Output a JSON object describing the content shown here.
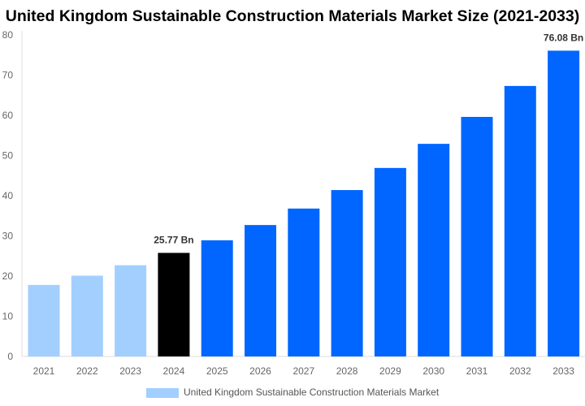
{
  "chart_data": {
    "type": "bar",
    "title": "United Kingdom Sustainable Construction Materials Market Size (2021-2033)",
    "categories": [
      "2021",
      "2022",
      "2023",
      "2024",
      "2025",
      "2026",
      "2027",
      "2028",
      "2029",
      "2030",
      "2031",
      "2032",
      "2033"
    ],
    "series": [
      {
        "name": "United Kingdom Sustainable Construction Materials Market",
        "values": [
          17.8,
          20.1,
          22.7,
          25.77,
          28.9,
          32.7,
          36.8,
          41.4,
          46.9,
          52.9,
          59.6,
          67.3,
          76.08
        ]
      }
    ],
    "data_labels": [
      {
        "index": 3,
        "text": "25.77 Bn"
      },
      {
        "index": 12,
        "text": "76.08 Bn"
      }
    ],
    "ylim": [
      0,
      80
    ],
    "yticks": [
      0,
      10,
      20,
      30,
      40,
      50,
      60,
      70,
      80
    ],
    "xlabel": "",
    "ylabel": "",
    "grid": false,
    "legend": "bottom",
    "colors": {
      "historical": "#a3cfff",
      "current": "#000000",
      "forecast": "#0066ff"
    }
  }
}
